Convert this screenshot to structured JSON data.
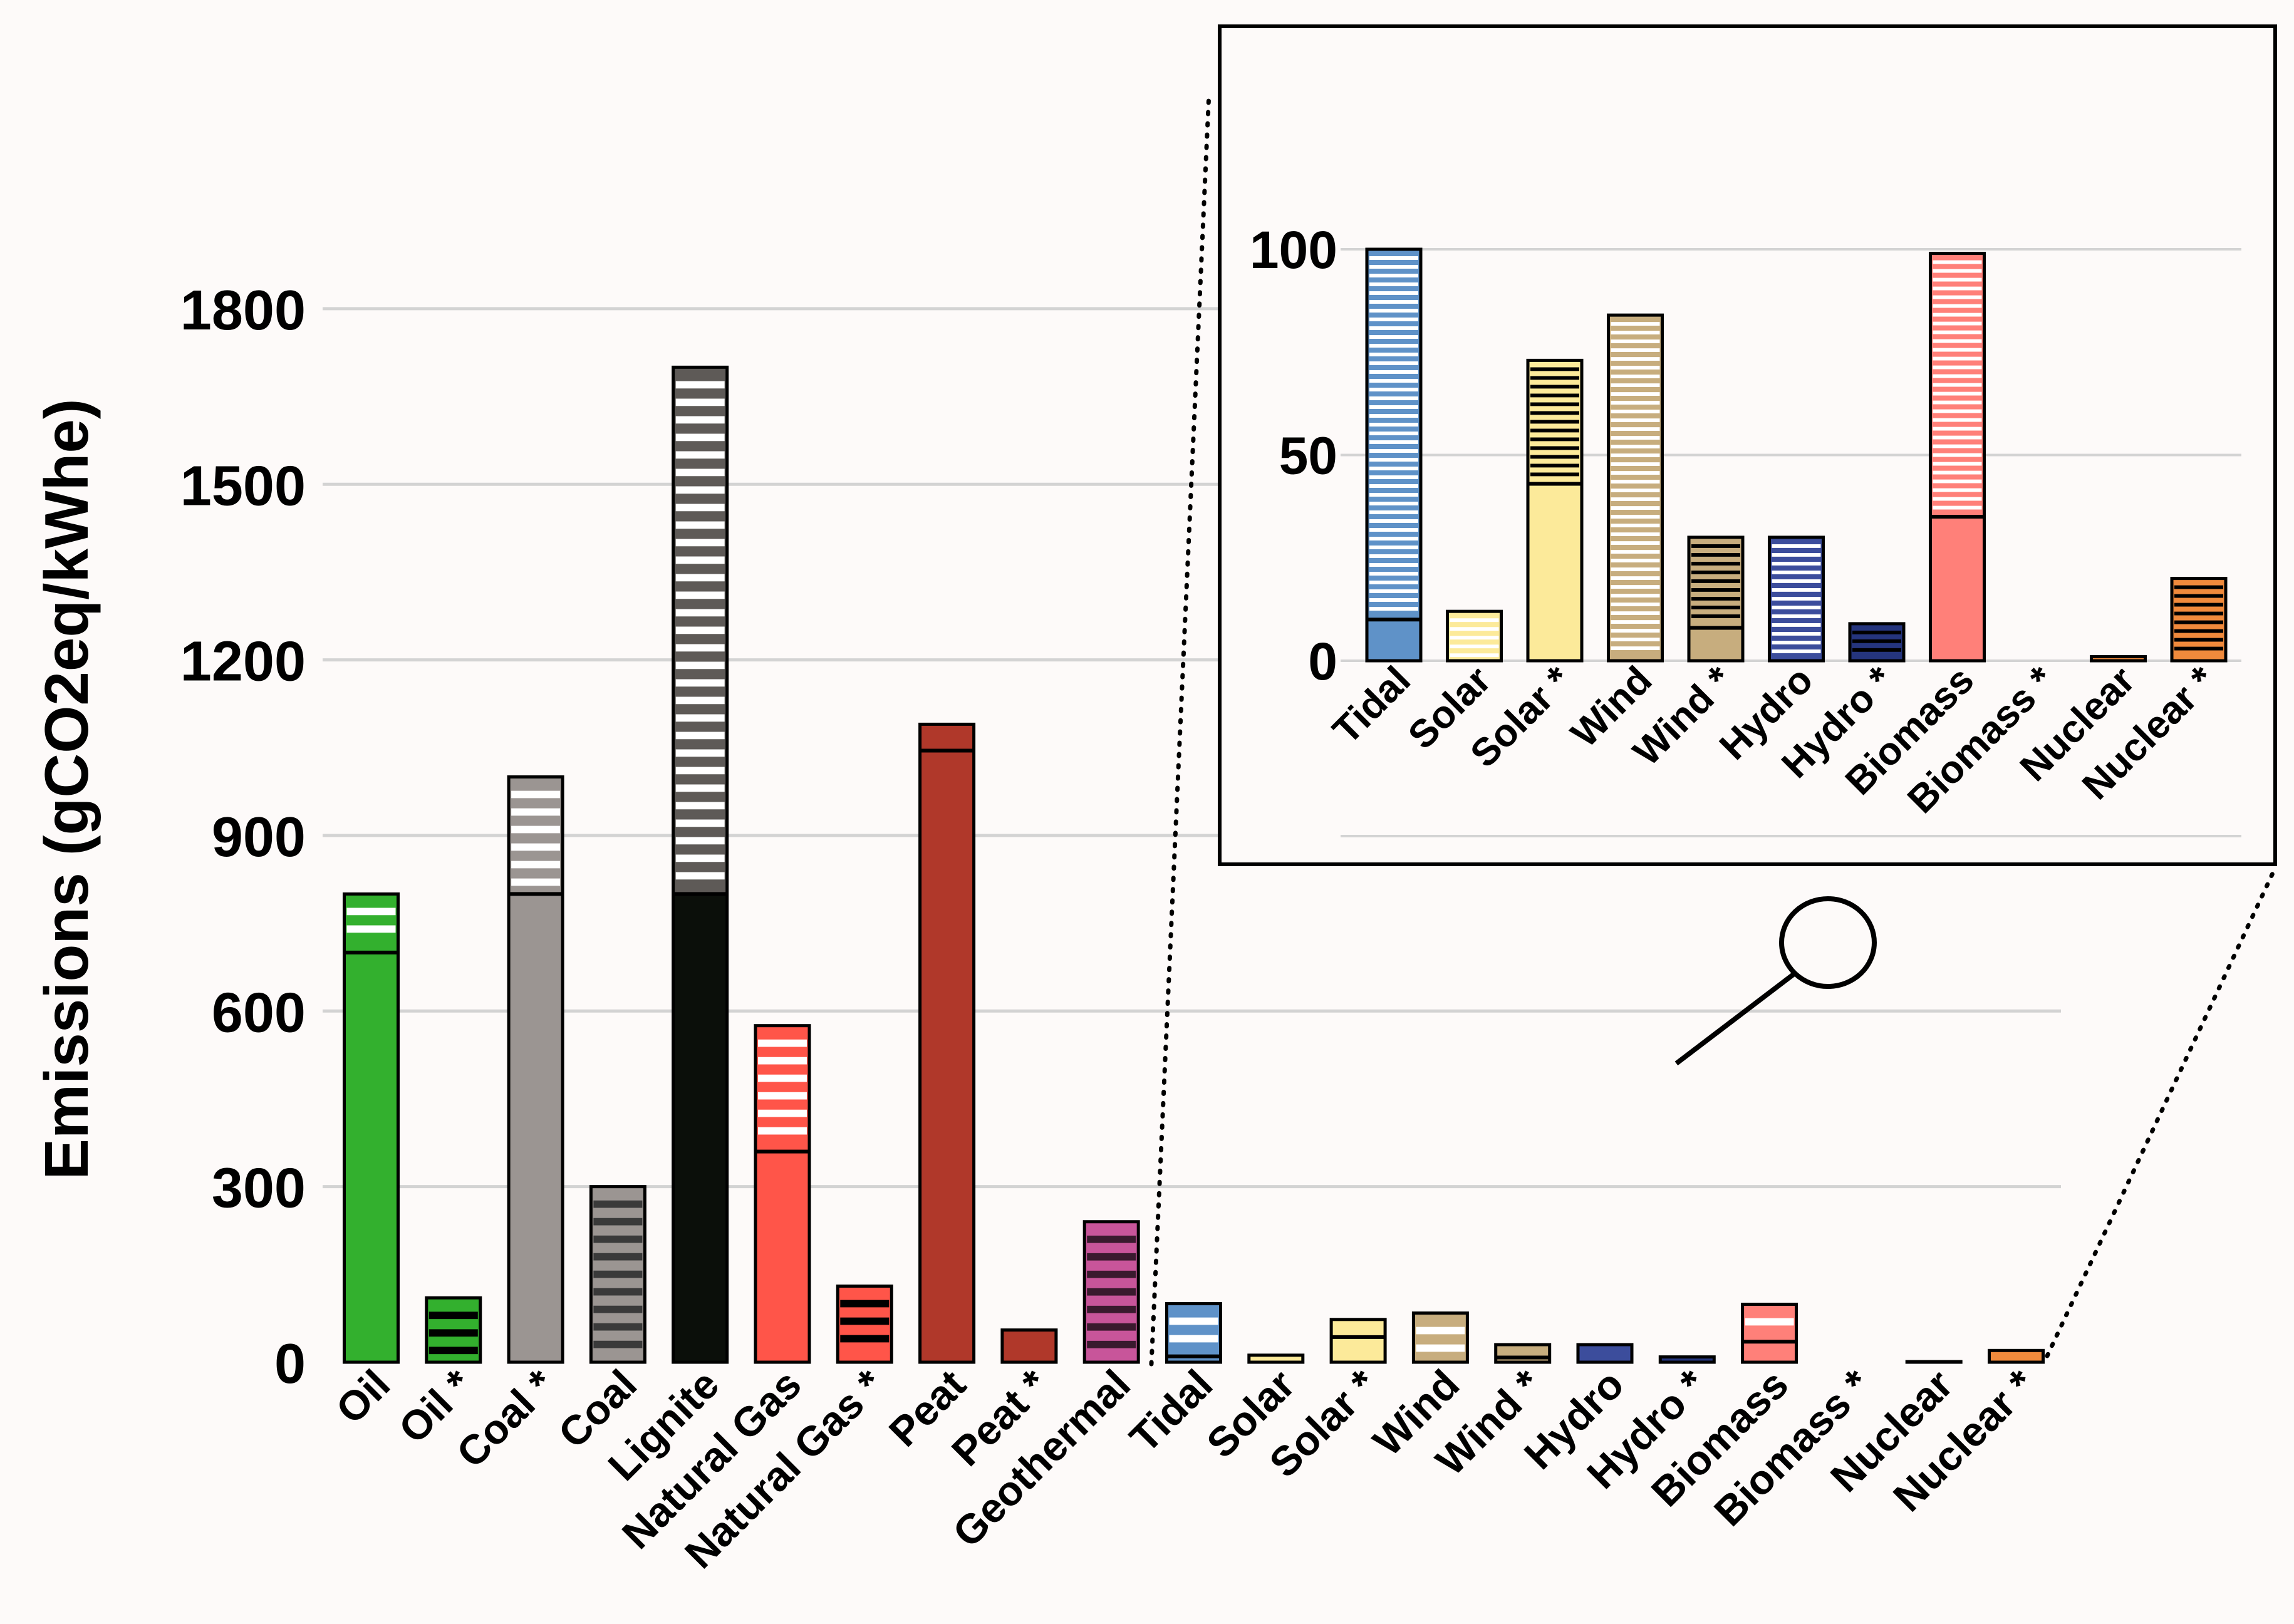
{
  "chart_data": [
    {
      "id": "main",
      "type": "bar",
      "stacked": true,
      "ylabel": "Emissions (gCO2eq/kWhe)",
      "yticks": [
        0,
        300,
        600,
        900,
        1200,
        1500,
        1800
      ],
      "ylim": [
        0,
        1800
      ],
      "grid": true,
      "categories": [
        {
          "label": "Oil",
          "solid": 700,
          "range": 100,
          "total": 800,
          "color": "#33b02e",
          "stripe": "#ffffff",
          "border": "#000000"
        },
        {
          "label": "Oil *",
          "solid": 0,
          "range": 110,
          "total": 110,
          "color": "#33b02e",
          "stripe": "#000000",
          "border": "#000000"
        },
        {
          "label": "Coal *",
          "solid": 800,
          "range": 200,
          "total": 1000,
          "color": "#9b9592",
          "stripe": "#ffffff",
          "border": "#000000"
        },
        {
          "label": "Coal",
          "solid": 0,
          "range": 300,
          "total": 300,
          "color": "#9b9592",
          "stripe": "#3a3a3a",
          "border": "#000000"
        },
        {
          "label": "Lignite",
          "solid": 800,
          "range": 900,
          "total": 1700,
          "color": "#0b0f0a",
          "stripe": "#ffffff",
          "stripeBg": "#5e5a57",
          "border": "#000000"
        },
        {
          "label": "Natural Gas",
          "solid": 360,
          "range": 215,
          "total": 575,
          "color": "#ff5549",
          "stripe": "#ffffff",
          "border": "#000000"
        },
        {
          "label": "Natural Gas *",
          "solid": 0,
          "range": 130,
          "total": 130,
          "color": "#ff5549",
          "stripe": "#000000",
          "border": "#000000"
        },
        {
          "label": "Peat",
          "solid": 1045,
          "range": 45,
          "total": 1090,
          "color": "#b0382a",
          "stripe": "#ffffff",
          "border": "#000000"
        },
        {
          "label": "Peat *",
          "solid": 55,
          "range": 0,
          "total": 55,
          "color": "#b0382a",
          "stripe": "#000000",
          "border": "#000000"
        },
        {
          "label": "Geothermal",
          "solid": 0,
          "range": 240,
          "total": 240,
          "color": "#c8559a",
          "stripe": "#3a1a2e",
          "border": "#000000"
        },
        {
          "label": "Tidal",
          "solid": 10,
          "range": 90,
          "total": 100,
          "color": "#5f92c8",
          "stripe": "#ffffff",
          "border": "#000000"
        },
        {
          "label": "Solar",
          "solid": 0,
          "range": 12,
          "total": 12,
          "color": "#fcea9a",
          "stripe": "#ffffff",
          "border": "#000000"
        },
        {
          "label": "Solar *",
          "solid": 43,
          "range": 30,
          "total": 73,
          "color": "#fcea9a",
          "stripe": "#000000",
          "border": "#000000"
        },
        {
          "label": "Wind",
          "solid": 0,
          "range": 84,
          "total": 84,
          "color": "#c7ad7e",
          "stripe": "#ffffff",
          "border": "#000000"
        },
        {
          "label": "Wind *",
          "solid": 8,
          "range": 22,
          "total": 30,
          "color": "#c7ad7e",
          "stripe": "#000000",
          "border": "#000000"
        },
        {
          "label": "Hydro",
          "solid": 0,
          "range": 30,
          "total": 30,
          "color": "#3c4d9c",
          "stripe": "#ffffff",
          "border": "#000000"
        },
        {
          "label": "Hydro *",
          "solid": 0,
          "range": 9,
          "total": 9,
          "color": "#25357e",
          "stripe": "#000000",
          "border": "#000000"
        },
        {
          "label": "Biomass",
          "solid": 35,
          "range": 64,
          "total": 99,
          "color": "#ff8079",
          "stripe": "#ffffff",
          "border": "#000000"
        },
        {
          "label": "Biomass *",
          "solid": 0,
          "range": 0,
          "total": 0,
          "color": "#ff8079",
          "stripe": "#000000",
          "border": "#000000"
        },
        {
          "label": "Nuclear",
          "solid": 1,
          "range": 0,
          "total": 1,
          "color": "#f08a3c",
          "stripe": "#000000",
          "border": "#000000"
        },
        {
          "label": "Nuclear *",
          "solid": 0,
          "range": 20,
          "total": 20,
          "color": "#f08a3c",
          "stripe": "#000000",
          "border": "#000000"
        }
      ]
    },
    {
      "id": "inset",
      "type": "bar",
      "stacked": true,
      "yticks": [
        0,
        50,
        100
      ],
      "ylim": [
        0,
        100
      ],
      "grid": true,
      "categories": [
        "Tidal",
        "Solar",
        "Solar *",
        "Wind",
        "Wind *",
        "Hydro",
        "Hydro *",
        "Biomass",
        "Biomass *",
        "Nuclear",
        "Nuclear *"
      ]
    }
  ]
}
